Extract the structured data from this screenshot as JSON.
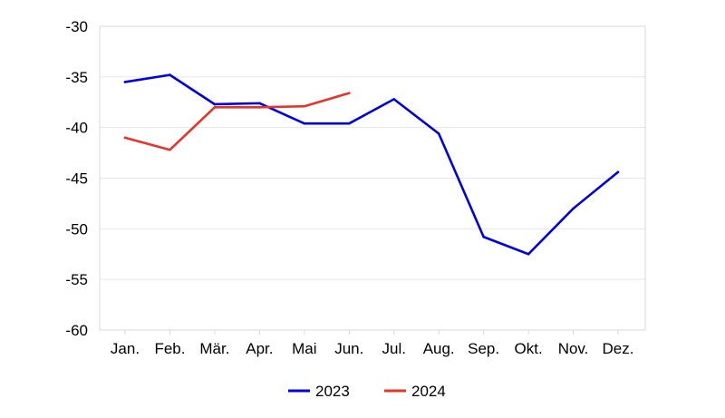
{
  "chart_data": {
    "type": "line",
    "categories": [
      "Jan.",
      "Feb.",
      "Mär.",
      "Apr.",
      "Mai",
      "Jun.",
      "Jul.",
      "Aug.",
      "Sep.",
      "Okt.",
      "Nov.",
      "Dez."
    ],
    "series": [
      {
        "name": "2023",
        "color": "#0000e6",
        "values": [
          -35.5,
          -34.8,
          -37.7,
          -37.6,
          -39.6,
          -39.6,
          -37.2,
          -40.6,
          -50.8,
          -52.5,
          -48.0,
          -44.4
        ]
      },
      {
        "name": "2024",
        "color": "#e8332a",
        "values": [
          -41.0,
          -42.2,
          -38.0,
          -38.0,
          -37.9,
          -36.6,
          null,
          null,
          null,
          null,
          null,
          null
        ]
      }
    ],
    "y_ticks": [
      "-30",
      "-35",
      "-40",
      "-45",
      "-50",
      "-55",
      "-60"
    ],
    "ylim": [
      -60,
      -30
    ],
    "grid": true,
    "legend_position": "bottom-center"
  }
}
